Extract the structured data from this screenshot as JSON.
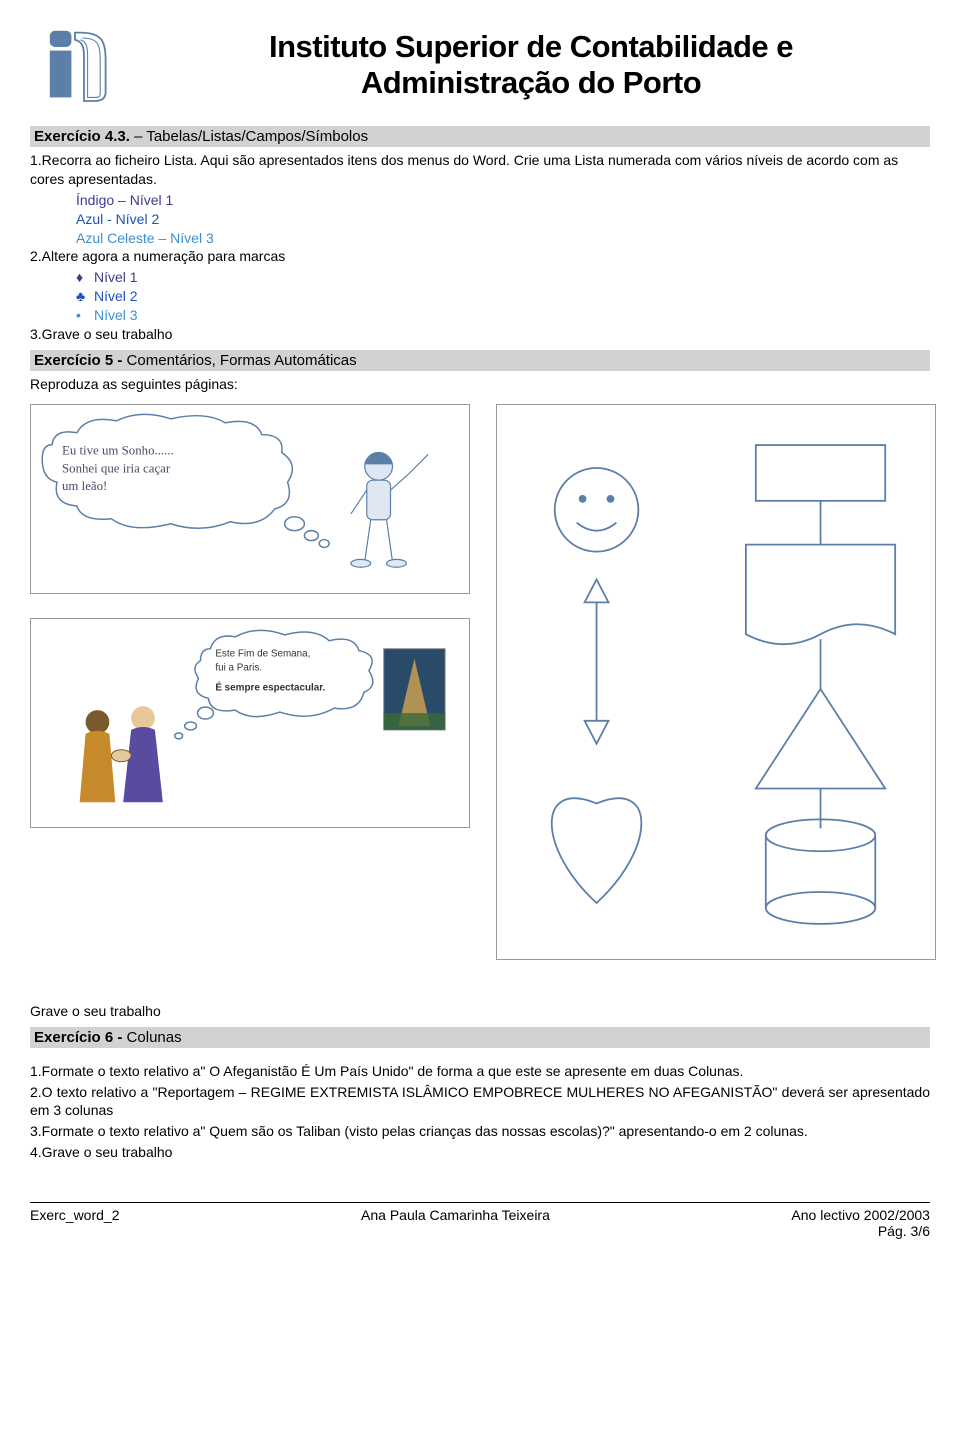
{
  "institution": {
    "line1": "Instituto Superior de Contabilidade e",
    "line2": "Administração do Porto"
  },
  "logo": {
    "stroke": "#5b7fa8",
    "fill_bg": "#ffffff"
  },
  "ex43": {
    "heading_bold": "Exercício 4.3.",
    "heading_rest": " – Tabelas/Listas/Campos/Símbolos",
    "p1": "1.Recorra ao ficheiro Lista. Aqui são apresentados itens dos menus do Word. Crie uma Lista numerada com vários níveis de acordo com as cores apresentadas.",
    "levels": [
      {
        "text": "Índigo – Nível 1",
        "color": "#3b3b8f"
      },
      {
        "text": "Azul - Nível 2",
        "color": "#1f4fbf"
      },
      {
        "text": "Azul Celeste – Nível 3",
        "color": "#3b8fcf"
      }
    ],
    "p2": "2.Altere agora a numeração para marcas",
    "bullets": [
      {
        "sym": "♦",
        "text": "Nível 1",
        "color": "#3b3b8f"
      },
      {
        "sym": "♣",
        "text": "Nível 2",
        "color": "#1f4fbf"
      },
      {
        "sym": "•",
        "text": "Nível 3",
        "color": "#3b8fcf"
      }
    ],
    "p3": "3.Grave o seu trabalho"
  },
  "ex5": {
    "heading_bold": "Exercício 5 -",
    "heading_rest": " Comentários, Formas Automáticas",
    "p1": "Reproduza as seguintes páginas:",
    "fig1": {
      "callout_lines": [
        "Eu tive um Sonho......",
        "Sonhei que iria caçar",
        "um leão!"
      ],
      "stroke": "#5b7fa8",
      "text_color": "#4a4a6a"
    },
    "fig2": {
      "callout_lines": [
        "Este Fim de Semana,",
        "fui a Paris.",
        "É sempre espectacular."
      ],
      "stroke": "#5b7fa8"
    },
    "fig3": {
      "stroke": "#5b7fa8"
    },
    "p2": "Grave o seu trabalho"
  },
  "ex6": {
    "heading_bold": "Exercício 6 -",
    "heading_rest": " Colunas",
    "items": {
      "p1": "1.Formate o texto relativo a\" O Afeganistão É Um País Unido\" de forma a que este se apresente em duas Colunas.",
      "p2": "2.O texto relativo a \"Reportagem – REGIME EXTREMISTA ISLÂMICO EMPOBRECE MULHERES NO AFEGANISTÃO\" deverá ser apresentado em 3 colunas",
      "p3": "3.Formate o texto relativo a\" Quem são os Taliban (visto pelas crianças das nossas escolas)?\" apresentando-o em 2 colunas.",
      "p4": "4.Grave o seu trabalho"
    }
  },
  "footer": {
    "left": "Exerc_word_2",
    "center": "Ana Paula Camarinha Teixeira",
    "right_line1": "Ano lectivo 2002/2003",
    "right_line2": "Pág. 3/6"
  },
  "colors": {
    "heading_bg": "#d2d2d2",
    "text": "#000000"
  }
}
